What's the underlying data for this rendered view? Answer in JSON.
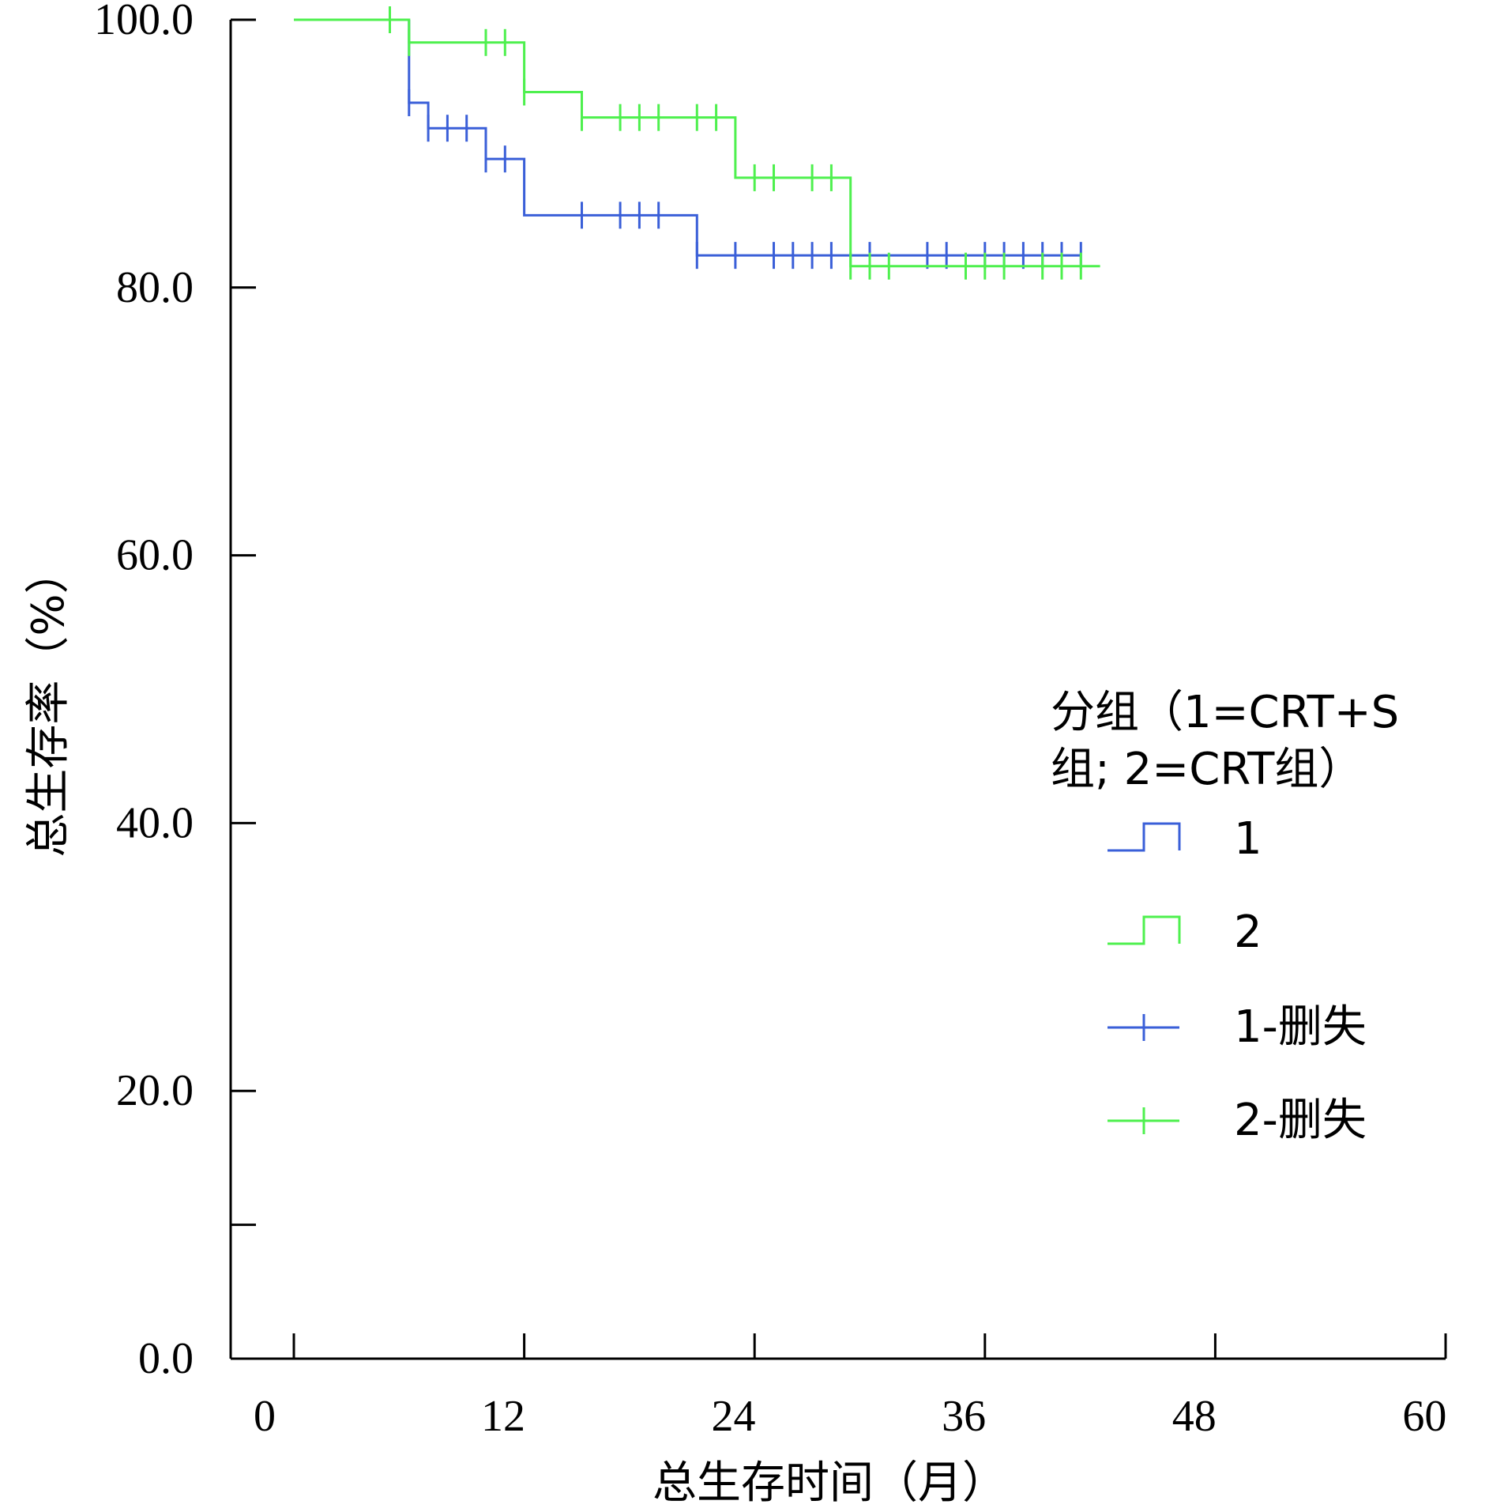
{
  "chart_data": {
    "type": "line",
    "subtype": "kaplan-meier",
    "xlabel": "总生存时间（月）",
    "ylabel": "总生存率（%）",
    "xlim": [
      0,
      60
    ],
    "ylim": [
      0,
      105
    ],
    "xticks": [
      0,
      12,
      24,
      36,
      48,
      60
    ],
    "xtick_labels": [
      "0",
      "12",
      "24",
      "36",
      "48",
      "60"
    ],
    "yticks": [
      0,
      20,
      40,
      60,
      80,
      100
    ],
    "ytick_labels": [
      "0.0",
      "20.0",
      "40.0",
      "60.0",
      "80.0",
      "100.0"
    ],
    "yminor_ticks": [
      10
    ],
    "grid": false,
    "legend": {
      "position": "right",
      "title_line1": "分组（1=CRT+S",
      "title_line2": "组; 2=CRT组）",
      "entries": [
        {
          "label": "1",
          "kind": "step",
          "color": "#3a5fd8"
        },
        {
          "label": "2",
          "kind": "step",
          "color": "#4ef04e"
        },
        {
          "label": "1-删失",
          "kind": "censor",
          "color": "#3a5fd8"
        },
        {
          "label": "2-删失",
          "kind": "censor",
          "color": "#4ef04e"
        }
      ]
    },
    "series": [
      {
        "name": "1",
        "color": "#3a5fd8",
        "steps": [
          [
            6,
            100
          ],
          [
            6,
            93.8
          ],
          [
            7,
            93.8
          ],
          [
            7,
            91.9
          ],
          [
            10,
            91.9
          ],
          [
            10,
            89.6
          ],
          [
            12,
            89.6
          ],
          [
            12,
            85.4
          ],
          [
            21,
            85.4
          ],
          [
            21,
            82.4
          ],
          [
            41,
            82.4
          ]
        ],
        "censored": [
          [
            6,
            93.8
          ],
          [
            7,
            91.9
          ],
          [
            8,
            91.9
          ],
          [
            9,
            91.9
          ],
          [
            10,
            89.6
          ],
          [
            11,
            89.6
          ],
          [
            15,
            85.4
          ],
          [
            17,
            85.4
          ],
          [
            18,
            85.4
          ],
          [
            19,
            85.4
          ],
          [
            21,
            82.4
          ],
          [
            23,
            82.4
          ],
          [
            25,
            82.4
          ],
          [
            26,
            82.4
          ],
          [
            27,
            82.4
          ],
          [
            28,
            82.4
          ],
          [
            30,
            82.4
          ],
          [
            33,
            82.4
          ],
          [
            34,
            82.4
          ],
          [
            36,
            82.4
          ],
          [
            37,
            82.4
          ],
          [
            38,
            82.4
          ],
          [
            39,
            82.4
          ],
          [
            40,
            82.4
          ],
          [
            41,
            82.4
          ]
        ]
      },
      {
        "name": "2",
        "color": "#4ef04e",
        "steps": [
          [
            0,
            100
          ],
          [
            6,
            100
          ],
          [
            6,
            98.3
          ],
          [
            12,
            98.3
          ],
          [
            12,
            94.6
          ],
          [
            15,
            94.6
          ],
          [
            15,
            92.7
          ],
          [
            23,
            92.7
          ],
          [
            23,
            88.2
          ],
          [
            29,
            88.2
          ],
          [
            29,
            81.6
          ],
          [
            42,
            81.6
          ]
        ],
        "censored": [
          [
            5,
            100
          ],
          [
            6,
            98.3
          ],
          [
            10,
            98.3
          ],
          [
            11,
            98.3
          ],
          [
            12,
            94.6
          ],
          [
            15,
            92.7
          ],
          [
            17,
            92.7
          ],
          [
            18,
            92.7
          ],
          [
            19,
            92.7
          ],
          [
            21,
            92.7
          ],
          [
            22,
            92.7
          ],
          [
            24,
            88.2
          ],
          [
            25,
            88.2
          ],
          [
            27,
            88.2
          ],
          [
            28,
            88.2
          ],
          [
            29,
            81.6
          ],
          [
            30,
            81.6
          ],
          [
            31,
            81.6
          ],
          [
            35,
            81.6
          ],
          [
            36,
            81.6
          ],
          [
            37,
            81.6
          ],
          [
            39,
            81.6
          ],
          [
            40,
            81.6
          ],
          [
            41,
            81.6
          ]
        ]
      }
    ]
  }
}
